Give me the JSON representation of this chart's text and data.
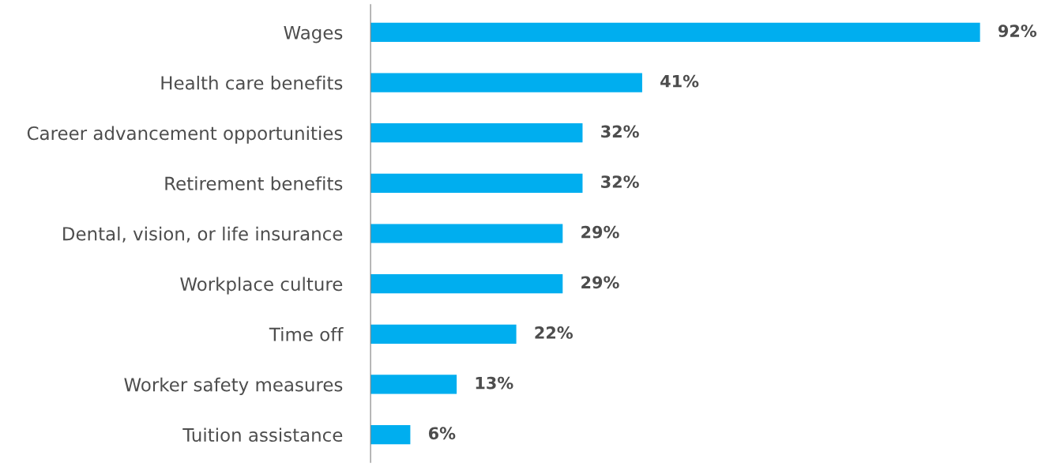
{
  "chart_data": {
    "type": "bar",
    "orientation": "horizontal",
    "categories": [
      "Wages",
      "Health care benefits",
      "Career advancement opportunities",
      "Retirement benefits",
      "Dental, vision, or life insurance",
      "Workplace culture",
      "Time off",
      "Worker safety measures",
      "Tuition assistance"
    ],
    "values": [
      92,
      41,
      32,
      32,
      29,
      29,
      22,
      13,
      6
    ],
    "value_labels": [
      "92%",
      "41%",
      "32%",
      "32%",
      "29%",
      "29%",
      "22%",
      "13%",
      "6%"
    ],
    "color": "#00aeef",
    "grid": false,
    "legend": false,
    "tick_labels": "y"
  }
}
